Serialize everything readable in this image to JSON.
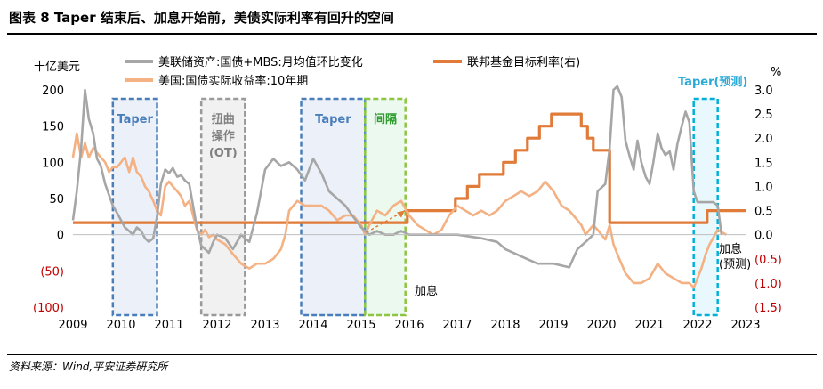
{
  "title": "图表 8      Taper 结束后、加息开始前，美债实际利率有回升的空间",
  "source": "资料来源：Wind,平安证券研究所",
  "chart_data": {
    "type": "line",
    "left_unit": "十亿美元",
    "right_unit": "%",
    "ylim_left": [
      -100,
      200
    ],
    "ylim_right": [
      -1.5,
      3.0
    ],
    "xlim": [
      2009,
      2023
    ],
    "left_ticks": [
      "200",
      "150",
      "100",
      "50",
      "0",
      "(50)",
      "(100)"
    ],
    "left_tick_values": [
      200,
      150,
      100,
      50,
      0,
      -50,
      -100
    ],
    "right_ticks": [
      "3.0",
      "2.5",
      "2.0",
      "1.5",
      "1.0",
      "0.5",
      "0.0",
      "(0.5)",
      "(1.0)",
      "(1.5)"
    ],
    "right_tick_values": [
      3.0,
      2.5,
      2.0,
      1.5,
      1.0,
      0.5,
      0.0,
      -0.5,
      -1.0,
      -1.5
    ],
    "x_ticks": [
      "2009",
      "2010",
      "2011",
      "2012",
      "2013",
      "2014",
      "2015",
      "2016",
      "2017",
      "2018",
      "2019",
      "2020",
      "2021",
      "2022",
      "2023"
    ],
    "x_tick_values": [
      2009,
      2010,
      2011,
      2012,
      2013,
      2014,
      2015,
      2016,
      2017,
      2018,
      2019,
      2020,
      2021,
      2022,
      2023
    ],
    "colors": {
      "fed_holdings": "#a6a6a6",
      "real_yield": "#f4b183",
      "fed_funds": "#e07b39",
      "box_blue": "#4a7ebb",
      "box_gray": "#9a9a9a",
      "box_green": "#8cc63f",
      "box_cyan": "#00b0d8",
      "negative_tick": "#c00000",
      "label_green": "#2e9e2e",
      "label_cyan": "#29a9d6"
    },
    "legend": [
      {
        "name": "美联储资产:国债+MBS:月均值环比变化",
        "color": "#a6a6a6"
      },
      {
        "name": "联邦基金目标利率(右)",
        "color": "#e07b39"
      },
      {
        "name": "美国:国债实际收益率:10年期",
        "color": "#f4b183"
      }
    ],
    "boxes": [
      {
        "label": "Taper",
        "x0": 2009.83,
        "x1": 2010.75,
        "style": "blue"
      },
      {
        "label": "扭曲\n操作\n(OT)",
        "x0": 2011.67,
        "x1": 2012.58,
        "style": "gray"
      },
      {
        "label": "Taper",
        "x0": 2013.75,
        "x1": 2015.08,
        "style": "blue"
      },
      {
        "label": "间隔",
        "x0": 2015.08,
        "x1": 2015.92,
        "style": "green"
      },
      {
        "label": "Taper(预测)",
        "x0": 2021.92,
        "x1": 2022.42,
        "style": "cyan"
      }
    ],
    "annotations": [
      {
        "text": "加息",
        "x": 2015.92,
        "y_right": -1.1
      },
      {
        "text": "加息\n(预测)",
        "x": 2022.6,
        "y_right": -0.3
      }
    ],
    "series": [
      {
        "name": "联邦基金目标利率(右)",
        "axis": "right",
        "x": [
          2009,
          2015.96,
          2015.96,
          2016.96,
          2016.96,
          2017.21,
          2017.21,
          2017.46,
          2017.46,
          2017.96,
          2017.96,
          2018.21,
          2018.21,
          2018.46,
          2018.46,
          2018.71,
          2018.71,
          2018.96,
          2018.96,
          2019.58,
          2019.58,
          2019.71,
          2019.71,
          2019.83,
          2019.83,
          2020.17,
          2020.17,
          2022.2,
          2022.2,
          2023
        ],
        "values": [
          0.25,
          0.25,
          0.5,
          0.5,
          0.75,
          0.75,
          1.0,
          1.0,
          1.25,
          1.25,
          1.5,
          1.5,
          1.75,
          1.75,
          2.0,
          2.0,
          2.25,
          2.25,
          2.5,
          2.5,
          2.25,
          2.25,
          2.0,
          2.0,
          1.75,
          1.75,
          0.25,
          0.25,
          0.5,
          0.5
        ]
      },
      {
        "name": "美国:国债实际收益率:10年期",
        "axis": "right",
        "x": [
          2009.0,
          2009.08,
          2009.17,
          2009.25,
          2009.33,
          2009.42,
          2009.5,
          2009.58,
          2009.67,
          2009.75,
          2009.83,
          2009.92,
          2010.0,
          2010.08,
          2010.17,
          2010.25,
          2010.33,
          2010.42,
          2010.5,
          2010.58,
          2010.67,
          2010.75,
          2010.83,
          2010.92,
          2011.0,
          2011.08,
          2011.17,
          2011.25,
          2011.33,
          2011.42,
          2011.5,
          2011.58,
          2011.67,
          2011.75,
          2011.83,
          2011.92,
          2012.0,
          2012.17,
          2012.33,
          2012.5,
          2012.67,
          2012.83,
          2013.0,
          2013.17,
          2013.33,
          2013.42,
          2013.5,
          2013.67,
          2013.83,
          2014.0,
          2014.17,
          2014.33,
          2014.5,
          2014.67,
          2014.83,
          2015.0,
          2015.08,
          2015.17,
          2015.33,
          2015.5,
          2015.67,
          2015.83,
          2016.0,
          2016.17,
          2016.33,
          2016.5,
          2016.67,
          2016.83,
          2017.0,
          2017.17,
          2017.33,
          2017.5,
          2017.67,
          2017.83,
          2018.0,
          2018.17,
          2018.33,
          2018.5,
          2018.67,
          2018.83,
          2019.0,
          2019.17,
          2019.33,
          2019.5,
          2019.58,
          2019.67,
          2019.75,
          2019.83,
          2019.92,
          2020.0,
          2020.08,
          2020.17,
          2020.25,
          2020.33,
          2020.5,
          2020.67,
          2020.83,
          2021.0,
          2021.17,
          2021.33,
          2021.5,
          2021.67,
          2021.83,
          2021.92,
          2022.0,
          2022.08,
          2022.17,
          2022.25,
          2022.42,
          2022.6
        ],
        "values": [
          1.6,
          2.1,
          1.6,
          1.9,
          1.6,
          1.8,
          1.7,
          1.6,
          1.5,
          1.3,
          1.4,
          1.4,
          1.5,
          1.6,
          1.3,
          1.6,
          1.3,
          1.2,
          1.0,
          0.9,
          0.7,
          0.5,
          0.4,
          1.0,
          1.1,
          1.0,
          0.9,
          0.8,
          0.6,
          0.7,
          0.4,
          0.1,
          0.0,
          0.1,
          -0.05,
          0.0,
          -0.1,
          -0.2,
          -0.4,
          -0.6,
          -0.7,
          -0.6,
          -0.6,
          -0.5,
          -0.3,
          0.0,
          0.5,
          0.7,
          0.6,
          0.6,
          0.6,
          0.5,
          0.3,
          0.4,
          0.4,
          0.2,
          0.0,
          0.2,
          0.5,
          0.4,
          0.6,
          0.7,
          0.4,
          0.2,
          0.1,
          0.0,
          0.1,
          0.4,
          0.6,
          0.5,
          0.4,
          0.5,
          0.4,
          0.5,
          0.7,
          0.8,
          0.9,
          0.8,
          0.9,
          1.1,
          0.9,
          0.6,
          0.5,
          0.3,
          0.2,
          0.0,
          0.1,
          0.2,
          0.1,
          0.0,
          -0.1,
          0.2,
          -0.2,
          -0.4,
          -0.8,
          -1.0,
          -1.0,
          -0.9,
          -0.6,
          -0.8,
          -0.9,
          -1.0,
          -1.0,
          -1.1,
          -0.9,
          -0.7,
          -0.4,
          -0.2,
          0.1,
          0.0
        ]
      },
      {
        "name": "美联储资产:国债+MBS:月均值环比变化",
        "axis": "left",
        "x": [
          2009.0,
          2009.08,
          2009.17,
          2009.25,
          2009.33,
          2009.42,
          2009.5,
          2009.58,
          2009.67,
          2009.75,
          2009.83,
          2009.92,
          2010.0,
          2010.08,
          2010.17,
          2010.25,
          2010.33,
          2010.42,
          2010.5,
          2010.58,
          2010.67,
          2010.75,
          2010.83,
          2010.92,
          2011.0,
          2011.08,
          2011.17,
          2011.25,
          2011.33,
          2011.42,
          2011.5,
          2011.58,
          2011.67,
          2011.75,
          2011.83,
          2011.92,
          2012.0,
          2012.17,
          2012.33,
          2012.5,
          2012.67,
          2012.83,
          2013.0,
          2013.17,
          2013.33,
          2013.5,
          2013.67,
          2013.83,
          2014.0,
          2014.17,
          2014.33,
          2014.5,
          2014.67,
          2014.83,
          2015.0,
          2015.17,
          2015.33,
          2015.5,
          2015.67,
          2015.83,
          2016.0,
          2016.5,
          2017.0,
          2017.5,
          2017.83,
          2018.0,
          2018.33,
          2018.67,
          2019.0,
          2019.33,
          2019.5,
          2019.67,
          2019.83,
          2019.92,
          2020.0,
          2020.08,
          2020.17,
          2020.25,
          2020.33,
          2020.42,
          2020.5,
          2020.58,
          2020.67,
          2020.75,
          2020.83,
          2020.92,
          2021.0,
          2021.08,
          2021.17,
          2021.25,
          2021.33,
          2021.42,
          2021.5,
          2021.58,
          2021.67,
          2021.75,
          2021.83,
          2021.92,
          2022.0,
          2022.08,
          2022.17,
          2022.25,
          2022.33,
          2022.42,
          2022.5
        ],
        "values": [
          20,
          60,
          120,
          200,
          160,
          140,
          105,
          95,
          70,
          55,
          40,
          30,
          20,
          10,
          5,
          0,
          10,
          5,
          -5,
          -10,
          -5,
          25,
          70,
          90,
          85,
          92,
          80,
          82,
          75,
          70,
          40,
          10,
          -15,
          -20,
          -25,
          -10,
          0,
          -5,
          -20,
          0,
          -10,
          30,
          90,
          105,
          95,
          100,
          90,
          75,
          105,
          85,
          60,
          50,
          40,
          25,
          10,
          0,
          5,
          0,
          0,
          5,
          0,
          0,
          0,
          -5,
          -10,
          -20,
          -30,
          -40,
          -40,
          -45,
          -20,
          -10,
          0,
          60,
          65,
          70,
          120,
          200,
          230,
          190,
          130,
          110,
          90,
          130,
          100,
          80,
          70,
          100,
          140,
          120,
          110,
          115,
          90,
          125,
          150,
          170,
          155,
          60,
          45,
          45,
          45,
          45,
          45,
          40,
          0
        ]
      }
    ]
  }
}
